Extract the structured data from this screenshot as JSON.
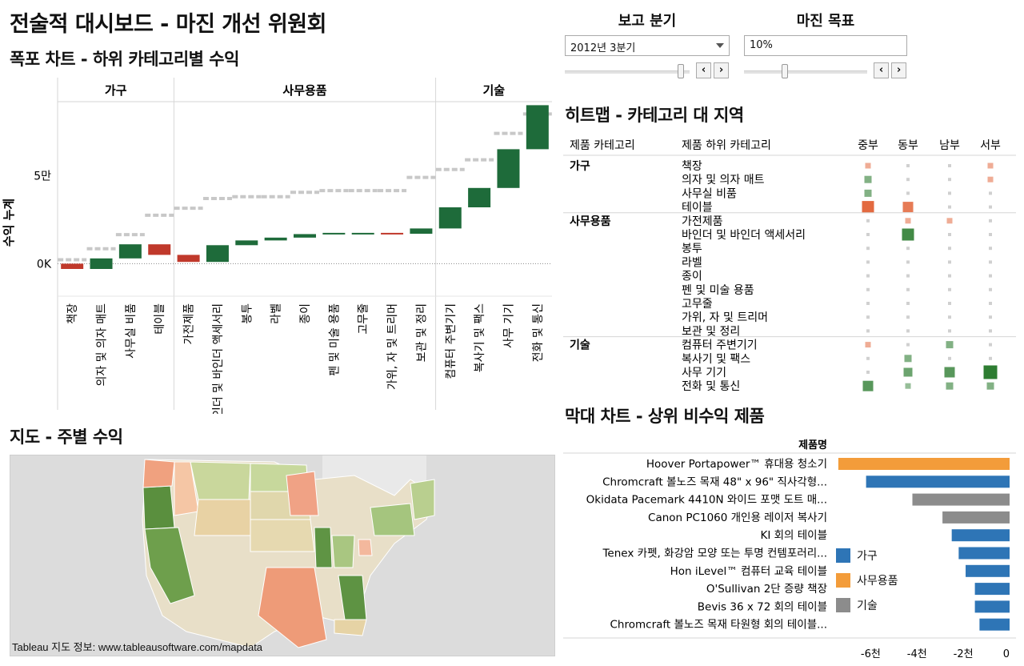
{
  "dashboard": {
    "title": "전술적 대시보드 - 마진 개선 위원회"
  },
  "controls": {
    "quarter": {
      "label": "보고 분기",
      "value": "2012년 3분기",
      "slider_level": 0.93
    },
    "margin": {
      "label": "마진 목표",
      "value": "10%",
      "slider_level": 0.33
    },
    "prev_symbol": "‹",
    "next_symbol": "›"
  },
  "waterfall": {
    "title": "폭포 차트 - 하위 카테고리별 수익",
    "ylabel": "수익 누계",
    "yticks": [
      {
        "v": 0,
        "label": "0K"
      },
      {
        "v": 50000,
        "label": "5만"
      }
    ],
    "groups": [
      {
        "name": "가구",
        "count": 4
      },
      {
        "name": "사무용품",
        "count": 9
      },
      {
        "name": "기술",
        "count": 4
      }
    ]
  },
  "chart_data": [
    {
      "type": "bar",
      "title": "폭포 차트 - 하위 카테고리별 수익",
      "ylabel": "수익 누계",
      "ylim": [
        -18000,
        92000
      ],
      "grid": false,
      "categories": [
        "책장",
        "의자 및 의자 매트",
        "사무실 비품",
        "테이블",
        "가전제품",
        "바인더 및 바인더 액세서리",
        "봉투",
        "라벨",
        "종이",
        "펜 및 미술 용품",
        "고무줄",
        "가위, 자 및 트리머",
        "보관 및 정리",
        "컴퓨터 주변기기",
        "복사기 및 팩스",
        "사무 기기",
        "전화 및 통신"
      ],
      "category_groups": [
        "가구",
        "가구",
        "가구",
        "가구",
        "사무용품",
        "사무용품",
        "사무용품",
        "사무용품",
        "사무용품",
        "사무용품",
        "사무용품",
        "사무용품",
        "사무용품",
        "기술",
        "기술",
        "기술",
        "기술"
      ],
      "start": [
        0,
        -3000,
        3000,
        11000,
        5000,
        1000,
        10500,
        13200,
        14800,
        16800,
        17500,
        17500,
        17000,
        20000,
        32000,
        43000,
        65000
      ],
      "end": [
        -3000,
        3000,
        11000,
        5000,
        1000,
        10500,
        13200,
        14800,
        16800,
        17500,
        17500,
        17000,
        20000,
        32000,
        43000,
        65000,
        90000
      ],
      "targets": [
        2200,
        8500,
        16500,
        27500,
        31500,
        37000,
        38000,
        38000,
        40500,
        41500,
        41500,
        41500,
        49000,
        53500,
        59000,
        74000,
        85000
      ],
      "colors": {
        "positive": "#1e6b3a",
        "negative": "#c0392b",
        "target": "#c8c8c8"
      }
    },
    {
      "type": "heatmap",
      "title": "히트맵 - 카테고리 대 지역",
      "columns": [
        "중부",
        "동부",
        "남부",
        "서부"
      ],
      "rows": [
        {
          "category": "가구",
          "label": "책장",
          "values": [
            -1,
            0,
            0,
            -1
          ]
        },
        {
          "category": "가구",
          "label": "의자 및 의자 매트",
          "values": [
            2,
            0,
            0,
            -1
          ]
        },
        {
          "category": "가구",
          "label": "사무실 비품",
          "values": [
            2,
            0,
            0,
            0
          ]
        },
        {
          "category": "가구",
          "label": "테이블",
          "values": [
            -5,
            -4,
            0,
            0
          ]
        },
        {
          "category": "사무용품",
          "label": "가전제품",
          "values": [
            0,
            -1,
            -1,
            0
          ]
        },
        {
          "category": "사무용품",
          "label": "바인더 및 바인더 액세서리",
          "values": [
            0,
            5,
            0,
            0
          ]
        },
        {
          "category": "사무용품",
          "label": "봉투",
          "values": [
            0,
            0,
            0,
            0
          ]
        },
        {
          "category": "사무용품",
          "label": "라벨",
          "values": [
            0,
            0,
            0,
            0
          ]
        },
        {
          "category": "사무용품",
          "label": "종이",
          "values": [
            0,
            0,
            0,
            0
          ]
        },
        {
          "category": "사무용품",
          "label": "펜 및 미술 용품",
          "values": [
            0,
            0,
            0,
            0
          ]
        },
        {
          "category": "사무용품",
          "label": "고무줄",
          "values": [
            0,
            0,
            0,
            0
          ]
        },
        {
          "category": "사무용품",
          "label": "가위, 자 및 트리머",
          "values": [
            0,
            0,
            0,
            0
          ]
        },
        {
          "category": "사무용품",
          "label": "보관 및 정리",
          "values": [
            0,
            0,
            0,
            0
          ]
        },
        {
          "category": "기술",
          "label": "컴퓨터 주변기기",
          "values": [
            -1,
            0,
            2,
            0
          ]
        },
        {
          "category": "기술",
          "label": "복사기 및 팩스",
          "values": [
            0,
            2,
            0,
            0
          ]
        },
        {
          "category": "기술",
          "label": "사무 기기",
          "values": [
            0,
            3,
            4,
            6
          ]
        },
        {
          "category": "기술",
          "label": "전화 및 통신",
          "values": [
            4,
            1,
            2,
            2
          ]
        }
      ]
    },
    {
      "type": "bar",
      "title": "막대 차트 - 상위 비수익 제품",
      "ylabel": "제품명",
      "xlim": [
        -7500,
        0
      ],
      "xticks": [
        {
          "v": -6000,
          "label": "-6천"
        },
        {
          "v": -4000,
          "label": "-4천"
        },
        {
          "v": -2000,
          "label": "-2천"
        },
        {
          "v": 0,
          "label": "0"
        }
      ],
      "categories": [
        "Hoover Portapower™ 휴대용 청소기",
        "Chromcraft 볼노즈 목재 48\" x 96\" 직사각형...",
        "Okidata Pacemark 4410N 와이드 포맷 도트 매...",
        "Canon PC1060 개인용 레이저 복사기",
        "KI 회의 테이블",
        "Tenex 카펫, 화강암 모양 또는 투명 컨템포러리...",
        "Hon iLevel™ 컴퓨터 교육 테이블",
        "O'Sullivan 2단 증량 책장",
        "Bevis 36 x 72 회의 테이블",
        "Chromcraft 볼노즈 목재 타원형 회의 테이블..."
      ],
      "values": [
        -7400,
        -6200,
        -4200,
        -2900,
        -2500,
        -2200,
        -1900,
        -1500,
        -1500,
        -1300
      ],
      "series_groups": [
        "사무용품",
        "가구",
        "기술",
        "기술",
        "가구",
        "가구",
        "가구",
        "가구",
        "가구",
        "가구"
      ],
      "legend": [
        {
          "name": "가구",
          "color": "#2e75b6"
        },
        {
          "name": "사무용품",
          "color": "#f39c3a"
        },
        {
          "name": "기술",
          "color": "#8c8c8c"
        }
      ],
      "legend_position": "bottom-left"
    }
  ],
  "heatmap": {
    "title": "히트맵 - 카테고리 대 지역",
    "header_category": "제품 카테고리",
    "header_subcategory": "제품 하위 카테고리",
    "colors": {
      "positive": "#2e7d32",
      "negative": "#e05a2b",
      "neutral": "#d0d0d0"
    }
  },
  "topbars": {
    "title": "막대 차트 - 상위 비수익 제품",
    "axis_title": "제품명"
  },
  "map": {
    "title": "지도 - 주별 수익",
    "attribution": "Tableau 지도 정보: www.tableausoftware.com/mapdata"
  }
}
